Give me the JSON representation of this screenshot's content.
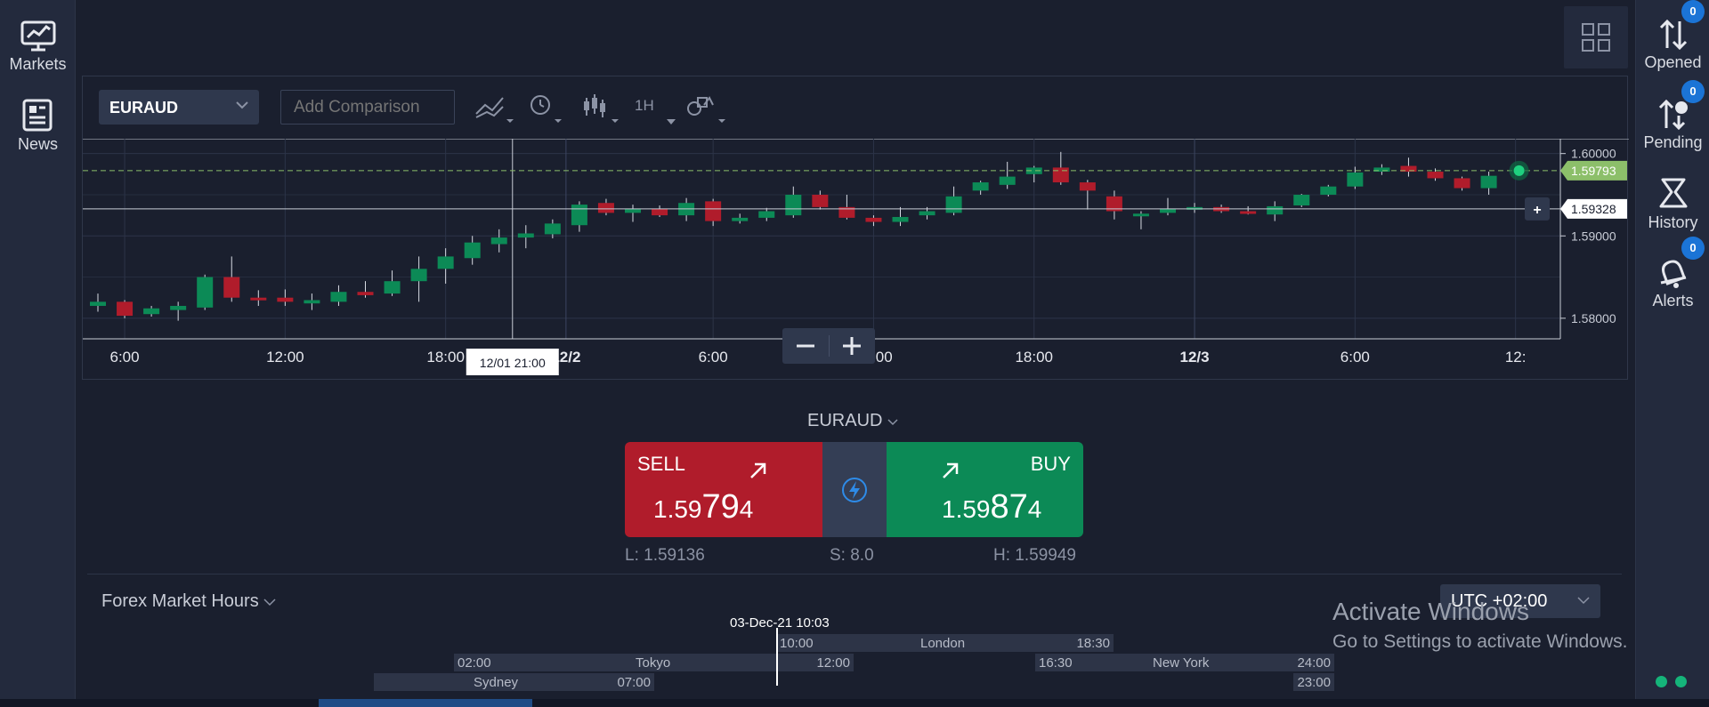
{
  "left_nav": {
    "markets_label": "Markets",
    "news_label": "News"
  },
  "right_nav": {
    "opened_label": "Opened",
    "opened_count": "0",
    "pending_label": "Pending",
    "pending_count": "0",
    "history_label": "History",
    "alerts_label": "Alerts",
    "alerts_count": "0"
  },
  "toolbar": {
    "symbol": "EURAUD",
    "compare_placeholder": "Add Comparison",
    "timeframe": "1H"
  },
  "chart_data": {
    "type": "candlestick",
    "symbol": "EURAUD",
    "timeframe": "1H",
    "x_tick_labels": [
      "6:00",
      "12:00",
      "18:00",
      "12/2",
      "6:00",
      "12:00",
      "18:00",
      "12/3",
      "6:00",
      "12:"
    ],
    "y_tick_labels": [
      "1.60000",
      "1.59000",
      "1.58000"
    ],
    "ylim": [
      1.5775,
      1.6018
    ],
    "current_price_label": "1.59793",
    "current_price": 1.59793,
    "crosshair_price_label": "1.59328",
    "crosshair_price": 1.59328,
    "crosshair_time_label": "12/01 21:00",
    "grid": true,
    "candles": [
      {
        "o": 1.5815,
        "h": 1.583,
        "l": 1.5808,
        "c": 1.582
      },
      {
        "o": 1.582,
        "h": 1.5822,
        "l": 1.58,
        "c": 1.5803
      },
      {
        "o": 1.5805,
        "h": 1.5815,
        "l": 1.5802,
        "c": 1.5812
      },
      {
        "o": 1.581,
        "h": 1.582,
        "l": 1.5797,
        "c": 1.5815
      },
      {
        "o": 1.5813,
        "h": 1.5853,
        "l": 1.581,
        "c": 1.585
      },
      {
        "o": 1.585,
        "h": 1.5875,
        "l": 1.582,
        "c": 1.5825
      },
      {
        "o": 1.5825,
        "h": 1.5834,
        "l": 1.5815,
        "c": 1.5822
      },
      {
        "o": 1.5825,
        "h": 1.5835,
        "l": 1.5815,
        "c": 1.582
      },
      {
        "o": 1.5818,
        "h": 1.583,
        "l": 1.581,
        "c": 1.5822
      },
      {
        "o": 1.582,
        "h": 1.584,
        "l": 1.5815,
        "c": 1.5832
      },
      {
        "o": 1.5832,
        "h": 1.5845,
        "l": 1.5825,
        "c": 1.5828
      },
      {
        "o": 1.583,
        "h": 1.5858,
        "l": 1.5827,
        "c": 1.5845
      },
      {
        "o": 1.5845,
        "h": 1.5875,
        "l": 1.582,
        "c": 1.586
      },
      {
        "o": 1.586,
        "h": 1.5885,
        "l": 1.5842,
        "c": 1.5875
      },
      {
        "o": 1.5873,
        "h": 1.59,
        "l": 1.5865,
        "c": 1.5892
      },
      {
        "o": 1.589,
        "h": 1.5908,
        "l": 1.588,
        "c": 1.5898
      },
      {
        "o": 1.5898,
        "h": 1.5913,
        "l": 1.5885,
        "c": 1.5903
      },
      {
        "o": 1.5902,
        "h": 1.592,
        "l": 1.5897,
        "c": 1.5915
      },
      {
        "o": 1.5913,
        "h": 1.5942,
        "l": 1.5905,
        "c": 1.5938
      },
      {
        "o": 1.594,
        "h": 1.5945,
        "l": 1.5925,
        "c": 1.5928
      },
      {
        "o": 1.5928,
        "h": 1.5938,
        "l": 1.5917,
        "c": 1.5933
      },
      {
        "o": 1.5933,
        "h": 1.5937,
        "l": 1.5923,
        "c": 1.5925
      },
      {
        "o": 1.5925,
        "h": 1.5946,
        "l": 1.5918,
        "c": 1.594
      },
      {
        "o": 1.5942,
        "h": 1.5945,
        "l": 1.5912,
        "c": 1.5918
      },
      {
        "o": 1.5918,
        "h": 1.5927,
        "l": 1.5915,
        "c": 1.5922
      },
      {
        "o": 1.5922,
        "h": 1.5934,
        "l": 1.5918,
        "c": 1.593
      },
      {
        "o": 1.5925,
        "h": 1.596,
        "l": 1.5922,
        "c": 1.595
      },
      {
        "o": 1.595,
        "h": 1.5955,
        "l": 1.5932,
        "c": 1.5935
      },
      {
        "o": 1.5935,
        "h": 1.595,
        "l": 1.592,
        "c": 1.5922
      },
      {
        "o": 1.5922,
        "h": 1.5925,
        "l": 1.5912,
        "c": 1.5917
      },
      {
        "o": 1.5917,
        "h": 1.5935,
        "l": 1.5912,
        "c": 1.5923
      },
      {
        "o": 1.5925,
        "h": 1.5935,
        "l": 1.592,
        "c": 1.593
      },
      {
        "o": 1.5928,
        "h": 1.596,
        "l": 1.5925,
        "c": 1.5948
      },
      {
        "o": 1.5955,
        "h": 1.5967,
        "l": 1.595,
        "c": 1.5965
      },
      {
        "o": 1.5962,
        "h": 1.599,
        "l": 1.5957,
        "c": 1.5972
      },
      {
        "o": 1.5975,
        "h": 1.5985,
        "l": 1.5965,
        "c": 1.5983
      },
      {
        "o": 1.5983,
        "h": 1.6002,
        "l": 1.5962,
        "c": 1.5965
      },
      {
        "o": 1.5965,
        "h": 1.5968,
        "l": 1.5932,
        "c": 1.5955
      },
      {
        "o": 1.5948,
        "h": 1.5955,
        "l": 1.592,
        "c": 1.593
      },
      {
        "o": 1.5925,
        "h": 1.593,
        "l": 1.5908,
        "c": 1.5927
      },
      {
        "o": 1.5928,
        "h": 1.5946,
        "l": 1.5925,
        "c": 1.5933
      },
      {
        "o": 1.5932,
        "h": 1.594,
        "l": 1.5928,
        "c": 1.5935
      },
      {
        "o": 1.5935,
        "h": 1.5938,
        "l": 1.5928,
        "c": 1.593
      },
      {
        "o": 1.593,
        "h": 1.5936,
        "l": 1.5926,
        "c": 1.5928
      },
      {
        "o": 1.5926,
        "h": 1.5942,
        "l": 1.5918,
        "c": 1.5936
      },
      {
        "o": 1.5937,
        "h": 1.5951,
        "l": 1.5935,
        "c": 1.595
      },
      {
        "o": 1.595,
        "h": 1.5962,
        "l": 1.5948,
        "c": 1.596
      },
      {
        "o": 1.596,
        "h": 1.5984,
        "l": 1.5957,
        "c": 1.5977
      },
      {
        "o": 1.5978,
        "h": 1.5987,
        "l": 1.5974,
        "c": 1.5983
      },
      {
        "o": 1.5985,
        "h": 1.5995,
        "l": 1.5972,
        "c": 1.5978
      },
      {
        "o": 1.5978,
        "h": 1.5982,
        "l": 1.5967,
        "c": 1.597
      },
      {
        "o": 1.597,
        "h": 1.5972,
        "l": 1.5955,
        "c": 1.5958
      },
      {
        "o": 1.5958,
        "h": 1.5978,
        "l": 1.595,
        "c": 1.5973
      }
    ]
  },
  "zoom": {
    "minus_label": "−",
    "plus_label": "+"
  },
  "trade": {
    "symbol": "EURAUD",
    "sell_label": "SELL",
    "sell_price_a": "1.59",
    "sell_price_b": "79",
    "sell_price_c": "4",
    "buy_label": "BUY",
    "buy_price_a": "1.59",
    "buy_price_b": "87",
    "buy_price_c": "4",
    "low": "L: 1.59136",
    "spread": "S: 8.0",
    "high": "H: 1.59949"
  },
  "market_hours": {
    "title": "Forex Market Hours",
    "timezone": "UTC +02:00",
    "now_label": "03-Dec-21 10:03",
    "sessions": [
      {
        "name": "London",
        "open": "10:00",
        "close": "18:30"
      },
      {
        "name": "Tokyo",
        "open": "02:00",
        "close": "12:00"
      },
      {
        "name": "New York",
        "open": "16:30",
        "close": "24:00"
      },
      {
        "name": "Sydney",
        "open": "",
        "close": "07:00"
      },
      {
        "name": "",
        "open": "",
        "close": "23:00"
      }
    ]
  },
  "watermark": {
    "line1": "Activate Windows",
    "line2": "Go to Settings to activate Windows."
  },
  "colors": {
    "bull": "#0c8a56",
    "bear": "#b01c2b",
    "background": "#1a1f2e",
    "rail": "#232a3d",
    "price_tag": "#8cbf6a"
  }
}
